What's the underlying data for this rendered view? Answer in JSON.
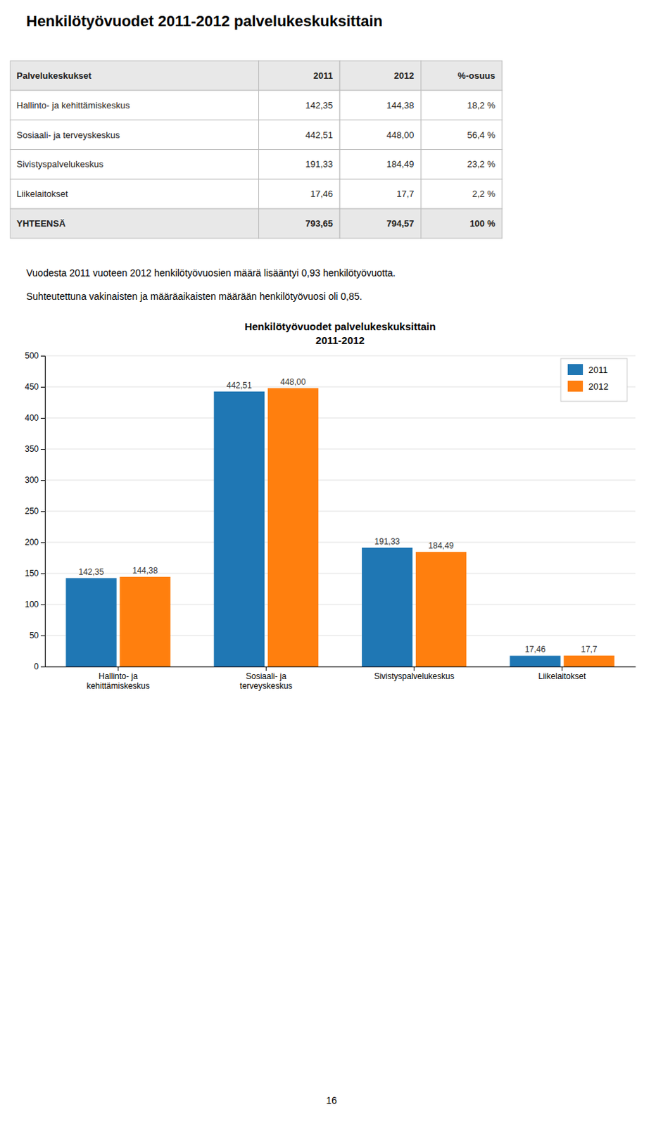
{
  "page_title": "Henkilötyövuodet 2011-2012 palvelukeskuksittain",
  "table": {
    "header": [
      "Palvelukeskukset",
      "2011",
      "2012",
      "%-osuus"
    ],
    "rows": [
      [
        "Hallinto- ja kehittämiskeskus",
        "142,35",
        "144,38",
        "18,2 %"
      ],
      [
        "Sosiaali- ja terveyskeskus",
        "442,51",
        "448,00",
        "56,4 %"
      ],
      [
        "Sivistyspalvelukeskus",
        "191,33",
        "184,49",
        "23,2 %"
      ],
      [
        "Liikelaitokset",
        "17,46",
        "17,7",
        "2,2 %"
      ],
      [
        "YHTEENSÄ",
        "793,65",
        "794,57",
        "100 %"
      ]
    ]
  },
  "body_text": [
    "Vuodesta 2011 vuoteen 2012 henkilötyövuosien määrä lisääntyi 0,93 henkilötyövuotta.",
    "Suhteutettuna vakinaisten ja määräaikaisten määrään henkilötyövuosi oli 0,85."
  ],
  "chart_data": {
    "type": "bar",
    "title": "Henkilötyövuodet palvelukeskuksittain",
    "subtitle": "2011-2012",
    "categories": [
      "Hallinto- ja\nkehittämiskeskus",
      "Sosiaali- ja\nterveyskeskus",
      "Sivistyspalvelukeskus",
      "Liikelaitokset"
    ],
    "series": [
      {
        "name": "2011",
        "color": "#1f77b4",
        "values": [
          142.35,
          442.51,
          191.33,
          17.46
        ],
        "value_labels": [
          "142,35",
          "442,51",
          "191,33",
          "17,46"
        ]
      },
      {
        "name": "2012",
        "color": "#ff7f0e",
        "values": [
          144.38,
          448.0,
          184.49,
          17.7
        ],
        "value_labels": [
          "144,38",
          "448,00",
          "184,49",
          "17,7"
        ]
      }
    ],
    "ylim": [
      0,
      500
    ],
    "yticks": [
      0,
      50,
      100,
      150,
      200,
      250,
      300,
      350,
      400,
      450,
      500
    ],
    "grid": true,
    "legend": "upper right",
    "data_labels": true
  },
  "page_number": "16"
}
